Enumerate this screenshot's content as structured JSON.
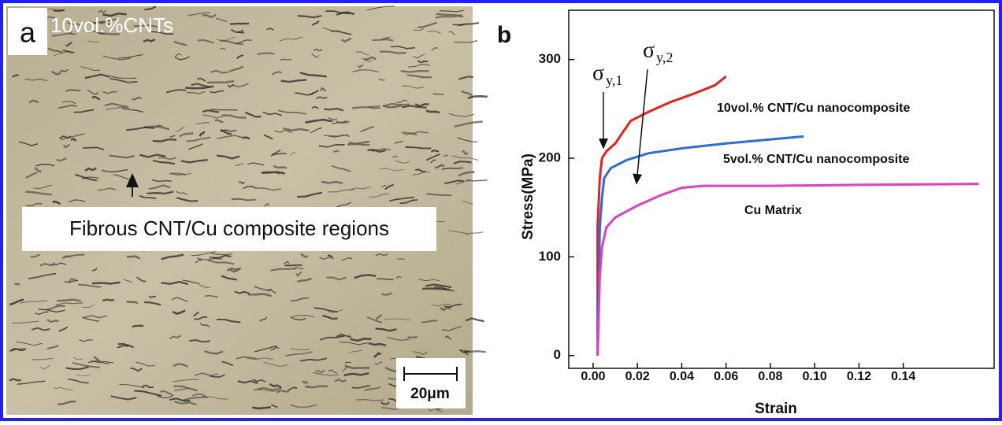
{
  "panel_a": {
    "label": "a",
    "caption": "10vol.%CNTs",
    "annotation": "Fibrous CNT/Cu composite regions",
    "scale_bar": "20μm"
  },
  "chart_data": {
    "type": "line",
    "panel_label": "b",
    "x_label": "Strain",
    "y_label": "Stress(MPa)",
    "xlim": [
      -0.011,
      0.181
    ],
    "ylim": [
      -13,
      350
    ],
    "xticks": [
      {
        "value": 0,
        "label": "0.00"
      },
      {
        "value": 0.02,
        "label": "0.02"
      },
      {
        "value": 0.04,
        "label": "0.04"
      },
      {
        "value": 0.06,
        "label": "0.06"
      },
      {
        "value": 0.08,
        "label": "0.08"
      },
      {
        "value": 0.1,
        "label": "0.10"
      },
      {
        "value": 0.12,
        "label": "0.12"
      },
      {
        "value": 0.14,
        "label": "0.14"
      }
    ],
    "yticks": [
      0,
      100,
      200,
      300
    ],
    "series": [
      {
        "name": "10vol.% CNT/Cu nanocomposite",
        "color": "#e8211e",
        "x": [
          0.002,
          0.002,
          0.003,
          0.004,
          0.006,
          0.01,
          0.013,
          0.017,
          0.025,
          0.035,
          0.045,
          0.055,
          0.06
        ],
        "values": [
          0,
          130,
          180,
          200,
          207,
          215,
          225,
          238,
          247,
          257,
          265,
          274,
          283
        ]
      },
      {
        "name": "5vol.% CNT/Cu nanocomposite",
        "color": "#2a6be0",
        "x": [
          0.002,
          0.003,
          0.004,
          0.005,
          0.008,
          0.015,
          0.025,
          0.04,
          0.06,
          0.095
        ],
        "values": [
          0,
          130,
          160,
          180,
          190,
          198,
          205,
          210,
          215,
          222
        ]
      },
      {
        "name": "Cu Matrix",
        "color": "#e23fc0",
        "x": [
          0.002,
          0.003,
          0.004,
          0.006,
          0.01,
          0.02,
          0.03,
          0.04,
          0.05,
          0.08,
          0.12,
          0.174
        ],
        "values": [
          0,
          80,
          110,
          130,
          140,
          152,
          162,
          170,
          172,
          172,
          173,
          174
        ]
      }
    ],
    "annotations": [
      {
        "symbol": "σ",
        "subscript": "y,1"
      },
      {
        "symbol": "σ",
        "subscript": "y,2"
      }
    ]
  }
}
